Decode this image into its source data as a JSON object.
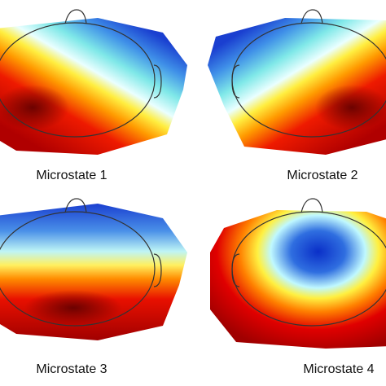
{
  "panels": [
    {
      "label": "Microstate 1"
    },
    {
      "label": "Microstate 2"
    },
    {
      "label": "Microstate 3"
    },
    {
      "label": "Microstate 4"
    }
  ]
}
